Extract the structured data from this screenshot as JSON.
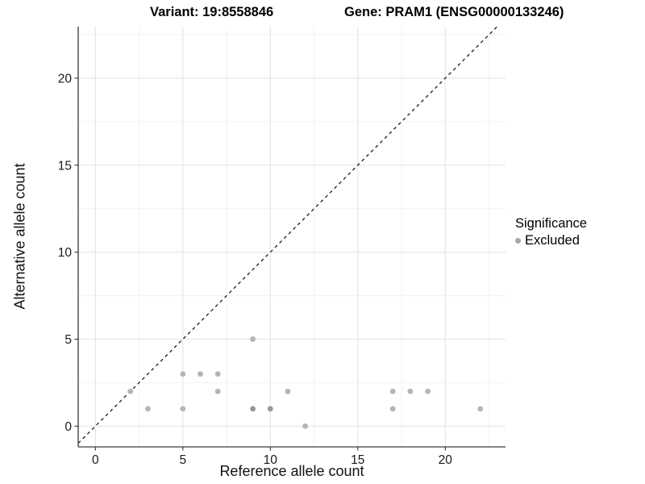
{
  "header": {
    "variant_title": "Variant: 19:8558846",
    "gene_title": "Gene: PRAM1 (ENSG00000133246)"
  },
  "legend": {
    "title": "Significance",
    "items": [
      {
        "label": "Excluded",
        "color": "#a8a8a8"
      }
    ]
  },
  "colors": {
    "background": "#ffffff",
    "axis_line": "#3c3c3c",
    "tick_mark": "#333333",
    "tick_label": "#1a1a1a",
    "major_grid": "#e6e6e6",
    "minor_grid": "#f2f2f2",
    "point_normal": "#b5b5b5",
    "point_overplotted": "#979797",
    "identity_line": "#1a1a1a"
  },
  "chart_data": {
    "type": "scatter",
    "title": "Variant: 19:8558846   Gene: PRAM1 (ENSG00000133246)",
    "xlabel": "Reference allele count",
    "ylabel": "Alternative allele count",
    "xlim": [
      -1,
      23.4
    ],
    "ylim": [
      -1.2,
      23
    ],
    "x_major_ticks": [
      0,
      5,
      10,
      15,
      20
    ],
    "y_major_ticks": [
      0,
      5,
      10,
      15,
      20
    ],
    "x_minor_gridlines": [
      2.5,
      7.5,
      12.5,
      17.5,
      22.5
    ],
    "y_minor_gridlines": [
      2.5,
      7.5,
      12.5,
      17.5,
      22.5
    ],
    "grid": true,
    "legend_position": "right",
    "identity_line": {
      "slope": 1,
      "intercept": 0,
      "style": "dashed"
    },
    "series": [
      {
        "name": "Excluded",
        "points": [
          {
            "x": 2,
            "y": 2
          },
          {
            "x": 3,
            "y": 1
          },
          {
            "x": 5,
            "y": 1
          },
          {
            "x": 5,
            "y": 3
          },
          {
            "x": 6,
            "y": 3
          },
          {
            "x": 7,
            "y": 2
          },
          {
            "x": 7,
            "y": 3
          },
          {
            "x": 9,
            "y": 1,
            "overplotted": true
          },
          {
            "x": 9,
            "y": 5
          },
          {
            "x": 10,
            "y": 1,
            "overplotted": true
          },
          {
            "x": 11,
            "y": 2
          },
          {
            "x": 12,
            "y": 0
          },
          {
            "x": 17,
            "y": 1
          },
          {
            "x": 17,
            "y": 2
          },
          {
            "x": 18,
            "y": 2
          },
          {
            "x": 19,
            "y": 2
          },
          {
            "x": 22,
            "y": 1
          }
        ]
      }
    ]
  }
}
